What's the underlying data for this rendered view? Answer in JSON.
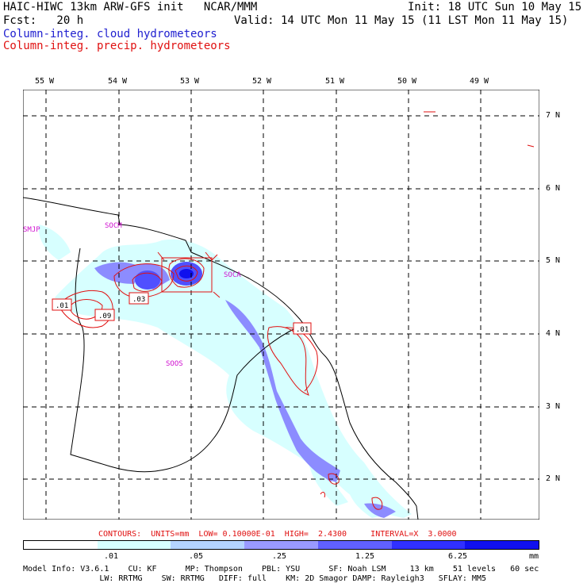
{
  "header": {
    "line1_left": "HAIC-HIWC 13km ARW-GFS init   NCAR/MMM",
    "line1_right": "Init: 18 UTC Sun 10 May 15",
    "line2_left": "Fcst:   20 h",
    "line2_right": "Valid: 14 UTC Mon 11 May 15 (11 LST Mon 11 May 15)",
    "legend_cloud": "Column-integ. cloud hydrometeors",
    "legend_precip": "Column-integ. precip. hydrometeors"
  },
  "map": {
    "longitude_labels": [
      "55 W",
      "54 W",
      "53 W",
      "52 W",
      "51 W",
      "50 W",
      "49 W"
    ],
    "latitude_labels": [
      "7 N",
      "6 N",
      "5 N",
      "4 N",
      "3 N",
      "2 N"
    ],
    "station_labels": [
      "SMJP",
      "SOCM",
      "SOCA",
      "SOOS"
    ],
    "contour_labels": [
      ".01",
      ".09",
      ".03",
      ".01"
    ],
    "colors": {
      "cloud_low": "#d7ffff",
      "cloud_mid": "#a0ceff",
      "cloud_high": "#8c8cff",
      "cloud_max": "#5050ff",
      "precip_contour": "#e01010",
      "coast": "#000000"
    }
  },
  "contours_text": "CONTOURS:  UNITS=mm  LOW= 0.10000E-01  HIGH=  2.4300     INTERVAL=X  3.0000",
  "colorbar": {
    "labels": [
      ".01",
      ".05",
      ".25",
      "1.25",
      "6.25",
      "mm"
    ],
    "colors": [
      "#ffffff",
      "#d7ffff",
      "#b4d4ff",
      "#9a9aff",
      "#6060ff",
      "#3030ff",
      "#1010ee"
    ]
  },
  "model_info": {
    "line1": "Model Info: V3.6.1    CU: KF      MP: Thompson    PBL: YSU      SF: Noah LSM     13 km    51 levels   60 sec",
    "line2": "                LW: RRTMG    SW: RRTMG   DIFF: full    KM: 2D Smagor DAMP: Rayleigh3   SFLAY: MM5"
  }
}
